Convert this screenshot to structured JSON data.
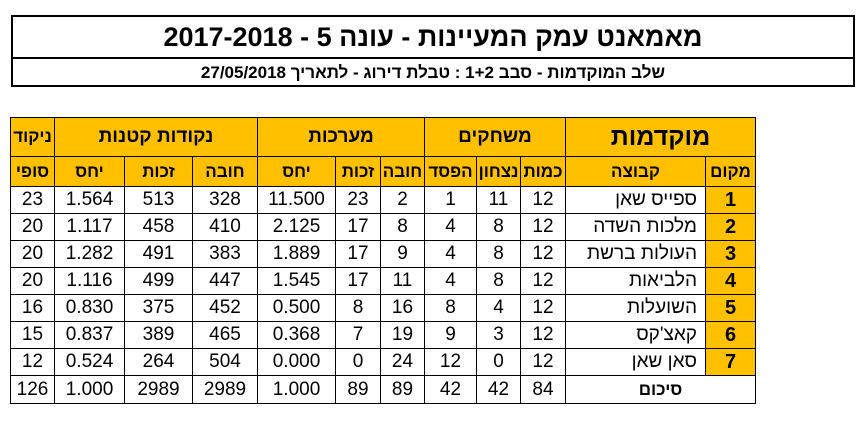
{
  "title": {
    "line1": "מאמאנט עמק המעיינות  -  עונה 5  -  2017-2018",
    "line2": "שלב המוקדמות - סבב 1+2   :   טבלת דירוג - לתאריך 27/05/2018"
  },
  "table": {
    "group_headers": {
      "main": "מוקדמות",
      "games": "משחקים",
      "sets": "מערכות",
      "points": "נקודות קטנות",
      "final_score": "ניקוד"
    },
    "sub_headers": {
      "place": "מקום",
      "team": "קבוצה",
      "played": "כמות",
      "won": "נצחון",
      "lost": "הפסד",
      "sets_against": "חובה",
      "sets_for": "זכות",
      "sets_ratio": "יחס",
      "points_against": "חובה",
      "points_for": "זכות",
      "points_ratio": "יחס",
      "final": "סופי"
    },
    "rows": [
      {
        "place": "1",
        "team": "ספייס שאן",
        "played": "12",
        "won": "11",
        "lost": "1",
        "sets_against": "2",
        "sets_for": "23",
        "sets_ratio": "11.500",
        "points_against": "328",
        "points_for": "513",
        "points_ratio": "1.564",
        "final": "23"
      },
      {
        "place": "2",
        "team": "מלכות השדה",
        "played": "12",
        "won": "8",
        "lost": "4",
        "sets_against": "8",
        "sets_for": "17",
        "sets_ratio": "2.125",
        "points_against": "410",
        "points_for": "458",
        "points_ratio": "1.117",
        "final": "20"
      },
      {
        "place": "3",
        "team": "העולות ברשת",
        "played": "12",
        "won": "8",
        "lost": "4",
        "sets_against": "9",
        "sets_for": "17",
        "sets_ratio": "1.889",
        "points_against": "383",
        "points_for": "491",
        "points_ratio": "1.282",
        "final": "20"
      },
      {
        "place": "4",
        "team": "הלביאות",
        "played": "12",
        "won": "8",
        "lost": "4",
        "sets_against": "11",
        "sets_for": "17",
        "sets_ratio": "1.545",
        "points_against": "447",
        "points_for": "499",
        "points_ratio": "1.116",
        "final": "20"
      },
      {
        "place": "5",
        "team": "השועלות",
        "played": "12",
        "won": "4",
        "lost": "8",
        "sets_against": "16",
        "sets_for": "8",
        "sets_ratio": "0.500",
        "points_against": "452",
        "points_for": "375",
        "points_ratio": "0.830",
        "final": "16"
      },
      {
        "place": "6",
        "team": "קאצ'קס",
        "played": "12",
        "won": "3",
        "lost": "9",
        "sets_against": "19",
        "sets_for": "7",
        "sets_ratio": "0.368",
        "points_against": "465",
        "points_for": "389",
        "points_ratio": "0.837",
        "final": "15"
      },
      {
        "place": "7",
        "team": "סאן שאן",
        "played": "12",
        "won": "0",
        "lost": "12",
        "sets_against": "24",
        "sets_for": "0",
        "sets_ratio": "0.000",
        "points_against": "504",
        "points_for": "264",
        "points_ratio": "0.524",
        "final": "12"
      }
    ],
    "totals": {
      "label": "סיכום",
      "played": "84",
      "won": "42",
      "lost": "42",
      "sets_against": "89",
      "sets_for": "89",
      "sets_ratio": "1.000",
      "points_against": "2989",
      "points_for": "2989",
      "points_ratio": "1.000",
      "final": "126"
    }
  }
}
